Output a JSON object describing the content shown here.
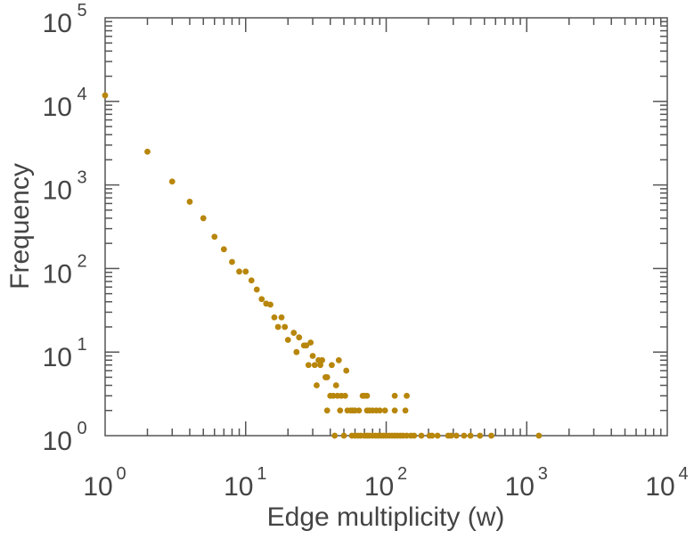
{
  "chart_data": {
    "type": "scatter",
    "title": "",
    "xlabel": "Edge multiplicity (w)",
    "ylabel": "Frequency",
    "xscale": "log",
    "yscale": "log",
    "xlim": [
      1,
      10000
    ],
    "ylim": [
      1,
      100000
    ],
    "x_ticks": [
      {
        "base": "10",
        "exp": "0",
        "value": 1
      },
      {
        "base": "10",
        "exp": "1",
        "value": 10
      },
      {
        "base": "10",
        "exp": "2",
        "value": 100
      },
      {
        "base": "10",
        "exp": "3",
        "value": 1000
      },
      {
        "base": "10",
        "exp": "4",
        "value": 10000
      }
    ],
    "y_ticks": [
      {
        "base": "10",
        "exp": "0",
        "value": 1
      },
      {
        "base": "10",
        "exp": "1",
        "value": 10
      },
      {
        "base": "10",
        "exp": "2",
        "value": 100
      },
      {
        "base": "10",
        "exp": "3",
        "value": 1000
      },
      {
        "base": "10",
        "exp": "4",
        "value": 10000
      },
      {
        "base": "10",
        "exp": "5",
        "value": 100000
      }
    ],
    "grid": false,
    "marker_color": "#b8860b",
    "axis_color": "#555555",
    "points": [
      [
        1,
        11800
      ],
      [
        2,
        2500
      ],
      [
        3,
        1100
      ],
      [
        4,
        630
      ],
      [
        5,
        400
      ],
      [
        6,
        240
      ],
      [
        7,
        170
      ],
      [
        8,
        120
      ],
      [
        9,
        92
      ],
      [
        10,
        92
      ],
      [
        11,
        72
      ],
      [
        12,
        56
      ],
      [
        13,
        43
      ],
      [
        14,
        38
      ],
      [
        15,
        37
      ],
      [
        16,
        26
      ],
      [
        17,
        20
      ],
      [
        18,
        26
      ],
      [
        19,
        20
      ],
      [
        20,
        14
      ],
      [
        22,
        17
      ],
      [
        23,
        10
      ],
      [
        24,
        15
      ],
      [
        26,
        12
      ],
      [
        27,
        12
      ],
      [
        28,
        7
      ],
      [
        29,
        13
      ],
      [
        30,
        9
      ],
      [
        31,
        7
      ],
      [
        32,
        4
      ],
      [
        33,
        8
      ],
      [
        34,
        7
      ],
      [
        35,
        8
      ],
      [
        37,
        5
      ],
      [
        38,
        5
      ],
      [
        38,
        2
      ],
      [
        40,
        3
      ],
      [
        41,
        7
      ],
      [
        42,
        3
      ],
      [
        44,
        4
      ],
      [
        45,
        3
      ],
      [
        46,
        8
      ],
      [
        47,
        2
      ],
      [
        48,
        3
      ],
      [
        51,
        3
      ],
      [
        52,
        6
      ],
      [
        53,
        2
      ],
      [
        56,
        2
      ],
      [
        58,
        2
      ],
      [
        60,
        2
      ],
      [
        64,
        2
      ],
      [
        68,
        3
      ],
      [
        70,
        3
      ],
      [
        73,
        3
      ],
      [
        73,
        2
      ],
      [
        76,
        2
      ],
      [
        80,
        2
      ],
      [
        85,
        2
      ],
      [
        90,
        2
      ],
      [
        98,
        2
      ],
      [
        115,
        3
      ],
      [
        115,
        2
      ],
      [
        137,
        2
      ],
      [
        140,
        3
      ],
      [
        43,
        1
      ],
      [
        50,
        1
      ],
      [
        57,
        1
      ],
      [
        60,
        1
      ],
      [
        63,
        1
      ],
      [
        66,
        1
      ],
      [
        70,
        1
      ],
      [
        73,
        1
      ],
      [
        76,
        1
      ],
      [
        80,
        1
      ],
      [
        84,
        1
      ],
      [
        88,
        1
      ],
      [
        92,
        1
      ],
      [
        96,
        1
      ],
      [
        100,
        1
      ],
      [
        105,
        1
      ],
      [
        110,
        1
      ],
      [
        115,
        1
      ],
      [
        120,
        1
      ],
      [
        126,
        1
      ],
      [
        132,
        1
      ],
      [
        140,
        1
      ],
      [
        150,
        1
      ],
      [
        158,
        1
      ],
      [
        178,
        1
      ],
      [
        203,
        1
      ],
      [
        212,
        1
      ],
      [
        232,
        1
      ],
      [
        276,
        1
      ],
      [
        290,
        1
      ],
      [
        316,
        1
      ],
      [
        358,
        1
      ],
      [
        398,
        1
      ],
      [
        465,
        1
      ],
      [
        560,
        1
      ],
      [
        1220,
        1
      ]
    ]
  }
}
